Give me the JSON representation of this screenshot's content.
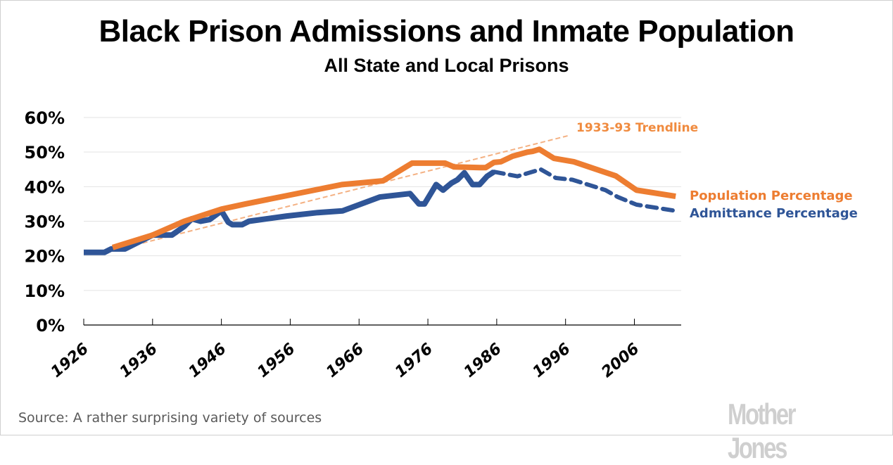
{
  "chart_data": {
    "type": "line",
    "title": "Black Prison Admissions and Inmate Population",
    "subtitle": "All State and Local Prisons",
    "xlabel": "",
    "ylabel": "",
    "xlim": [
      1926,
      2012.8
    ],
    "ylim": [
      0,
      60
    ],
    "yticks": [
      0,
      10,
      20,
      30,
      40,
      50,
      60
    ],
    "ytick_labels": [
      "0%",
      "10%",
      "20%",
      "30%",
      "40%",
      "50%",
      "60%"
    ],
    "xticks": [
      1926,
      1936,
      1946,
      1956,
      1966,
      1976,
      1986,
      1996,
      2006
    ],
    "xtick_labels": [
      "1926",
      "1936",
      "1946",
      "1956",
      "1966",
      "1976",
      "1986",
      "1996",
      "2006"
    ],
    "grid": "horizontal",
    "legend": "right (inline labels)",
    "series": [
      {
        "name": "Population Percentage",
        "color": "#ED7D31",
        "style": "solid",
        "x": [
          1930.2,
          1936,
          1940.6,
          1946,
          1949.5,
          1955.5,
          1963.5,
          1969.5,
          1973.7,
          1978.5,
          1979.8,
          1983.6,
          1984.4,
          1985.6,
          1986.6,
          1988.3,
          1990.5,
          1991.2,
          1992.2,
          1994.3,
          1997.2,
          2003.3,
          2006.3,
          2012
        ],
        "values": [
          22.4,
          26,
          30,
          33.5,
          35,
          37.4,
          40.6,
          41.7,
          46.8,
          46.8,
          45.7,
          45.5,
          45.5,
          47,
          47.2,
          48.8,
          50,
          50.2,
          50.8,
          48.2,
          47.2,
          43.1,
          39,
          37.2
        ]
      },
      {
        "name": "Admittance Percentage",
        "color": "#2F5597",
        "style": "solid until 1986, dashed after",
        "dashed_from": 1985.6,
        "x": [
          1926,
          1929,
          1930,
          1932,
          1936,
          1938.8,
          1940.6,
          1941.7,
          1943,
          1944.3,
          1946,
          1947,
          1947.6,
          1949,
          1950,
          1955.5,
          1960,
          1963.6,
          1969,
          1973.4,
          1974.7,
          1975.5,
          1977.2,
          1978.2,
          1979.4,
          1980.3,
          1981.3,
          1982.5,
          1983.5,
          1984.6,
          1985.6,
          1989,
          1992.4,
          1994.6,
          1997,
          2001.8,
          2003.6,
          2006.3,
          2012
        ],
        "values": [
          21,
          21,
          22,
          22,
          26,
          26,
          28.5,
          30.7,
          30,
          30.5,
          33,
          29.7,
          29,
          29,
          30,
          31.5,
          32.5,
          33,
          37,
          38,
          35,
          35,
          40.6,
          39,
          41,
          42,
          44,
          40.6,
          40.6,
          43,
          44.3,
          43,
          45,
          42.5,
          42,
          39,
          37,
          34.8,
          33
        ]
      }
    ],
    "trendline": {
      "name": "1933-93 Trendline",
      "color": "#F4B183",
      "style": "dashed",
      "x": [
        1930.2,
        1996.3
      ],
      "values": [
        21.5,
        54.7
      ]
    },
    "annotations": [
      {
        "text": "1933-93 Trendline",
        "color": "#F08B3F"
      },
      {
        "text": "Population Percentage",
        "color": "#ED7D31"
      },
      {
        "text": "Admittance Percentage",
        "color": "#2F5597"
      }
    ]
  },
  "footer": {
    "source": "Source: A rather surprising variety of sources",
    "logo": "Mother Jones"
  }
}
